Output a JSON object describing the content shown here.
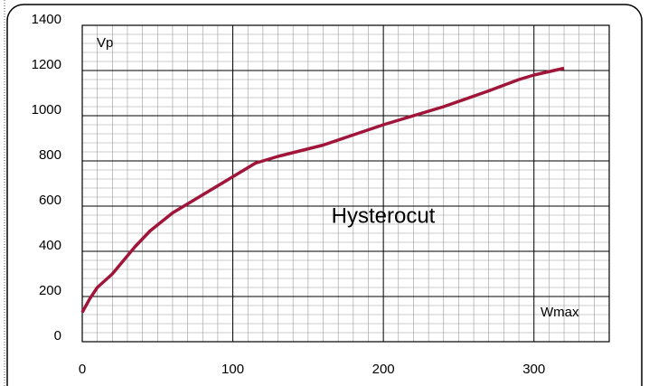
{
  "chart_data": {
    "type": "line",
    "y_label": "Vp",
    "x_label": "Wmax",
    "annotation": "Hysterocut",
    "x": [
      0,
      5,
      10,
      20,
      35,
      45,
      60,
      80,
      100,
      115,
      130,
      160,
      200,
      240,
      270,
      290,
      300,
      320
    ],
    "series": [
      {
        "name": "Hysterocut",
        "color": "#a0163a",
        "values": [
          130,
          190,
          240,
          300,
          420,
          490,
          570,
          650,
          730,
          790,
          820,
          870,
          960,
          1040,
          1110,
          1160,
          1180,
          1210
        ]
      }
    ],
    "xlim": [
      0,
      350
    ],
    "xticks": [
      0,
      100,
      200,
      300
    ],
    "ylim": [
      0,
      1400
    ],
    "yticks": [
      0,
      200,
      400,
      600,
      800,
      1000,
      1200,
      1400
    ],
    "grid": true
  }
}
